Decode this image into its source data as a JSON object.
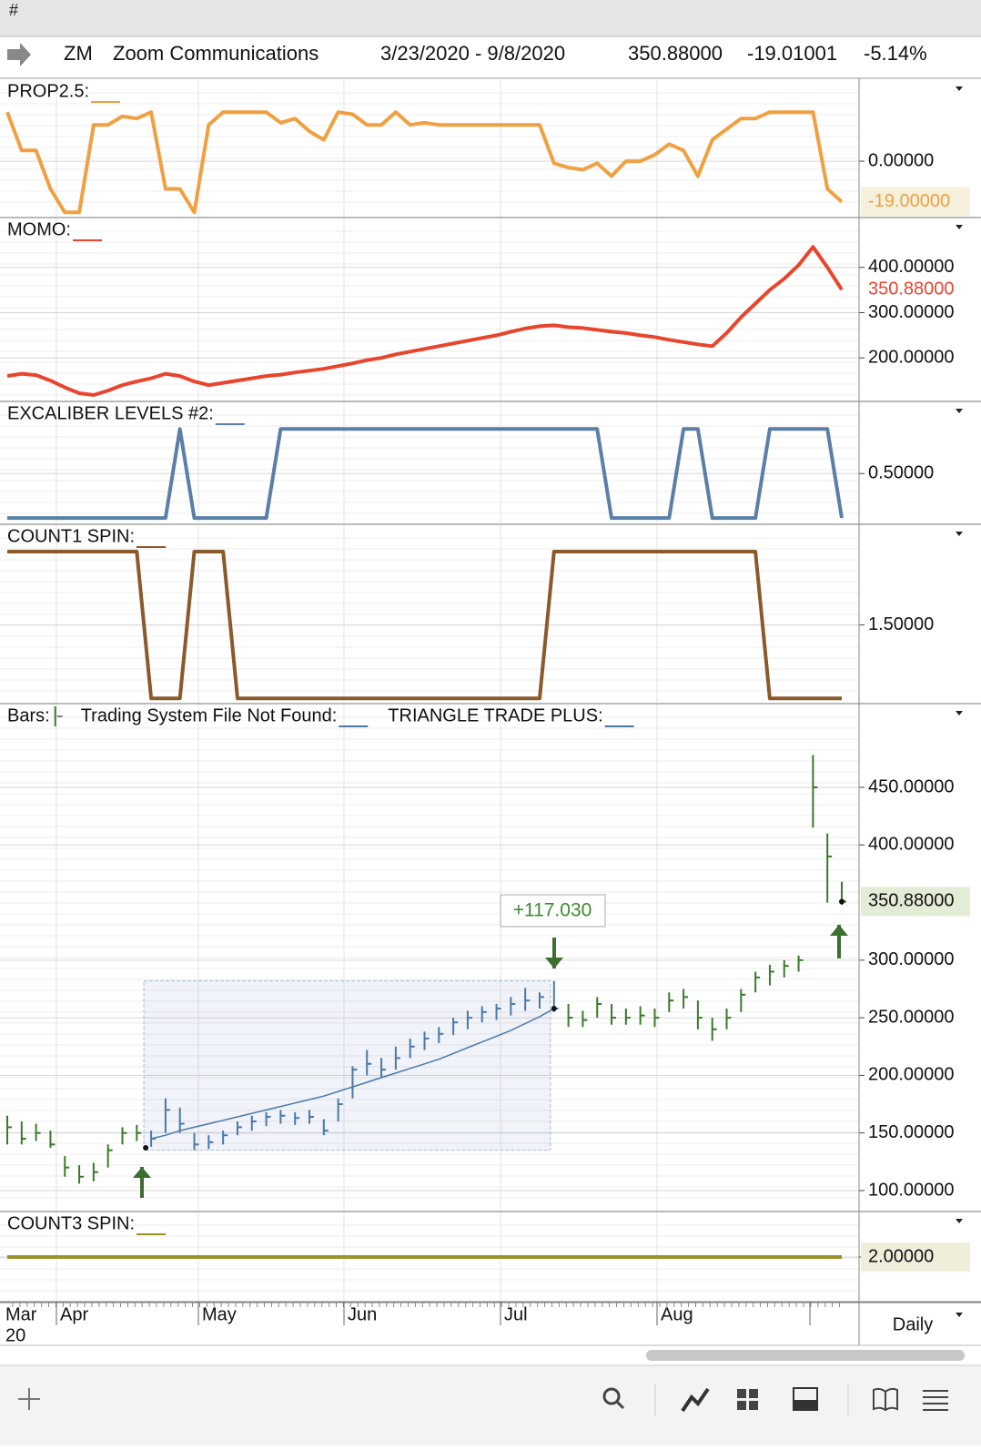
{
  "header": {
    "title": "#",
    "symbol": "ZM",
    "name": "Zoom Communications",
    "range": "3/23/2020 - 9/8/2020",
    "last": "350.88000",
    "change": "-19.01001",
    "percent": "-5.14%"
  },
  "panels": [
    {
      "type": "line",
      "label": "PROP2.5:",
      "color": "#f0a040",
      "ylim": [
        -26,
        38
      ],
      "yticks": [
        {
          "value": 0,
          "label": "0.00000"
        }
      ],
      "last": {
        "value": -19,
        "label": "-19.00000"
      },
      "values": [
        23,
        5,
        5,
        -13,
        -24,
        -24,
        17,
        17,
        21,
        20,
        23,
        -13,
        -13,
        -24,
        17,
        23,
        23,
        23,
        23,
        18,
        20,
        14,
        10,
        23,
        22,
        17,
        17,
        23,
        17,
        18,
        17,
        17,
        17,
        17,
        17,
        17,
        17,
        17,
        -1,
        -3,
        -4,
        -1,
        -7,
        0,
        0,
        3,
        8,
        5,
        -7,
        10,
        15,
        20,
        20,
        23,
        23,
        23,
        23,
        -13,
        -19
      ]
    },
    {
      "type": "line",
      "label": "MOMO:",
      "color": "#e8452c",
      "ylim": [
        106,
        508
      ],
      "yticks": [
        {
          "value": 400,
          "label": "400.00000"
        },
        {
          "value": 300,
          "label": "300.00000"
        },
        {
          "value": 200,
          "label": "200.00000"
        }
      ],
      "last": {
        "value": 350.88,
        "label": "350.88000"
      },
      "values": [
        160,
        165,
        162,
        150,
        135,
        122,
        118,
        128,
        140,
        148,
        155,
        165,
        160,
        148,
        140,
        145,
        150,
        155,
        160,
        163,
        168,
        172,
        176,
        182,
        188,
        195,
        200,
        208,
        214,
        220,
        226,
        232,
        238,
        244,
        250,
        258,
        265,
        270,
        272,
        268,
        266,
        262,
        258,
        255,
        250,
        246,
        240,
        235,
        230,
        226,
        255,
        290,
        320,
        350,
        375,
        405,
        445,
        400,
        350.88
      ]
    },
    {
      "type": "line",
      "label": "EXCALIBER LEVELS #2:",
      "color": "#5a7fa8",
      "ylim": [
        -0.06,
        1.3
      ],
      "yticks": [
        {
          "value": 0.5,
          "label": "0.50000"
        }
      ],
      "values": [
        0,
        0,
        0,
        0,
        0,
        0,
        0,
        0,
        0,
        0,
        0,
        0,
        1,
        0,
        0,
        0,
        0,
        0,
        0,
        1,
        1,
        1,
        1,
        1,
        1,
        1,
        1,
        1,
        1,
        1,
        1,
        1,
        1,
        1,
        1,
        1,
        1,
        1,
        1,
        1,
        1,
        1,
        0,
        0,
        0,
        0,
        0,
        1,
        1,
        0,
        0,
        0,
        0,
        1,
        1,
        1,
        1,
        1,
        0
      ]
    },
    {
      "type": "line",
      "label": "COUNT1 SPIN:",
      "color": "#8b5a2b",
      "ylim": [
        0.97,
        2.18
      ],
      "yticks": [
        {
          "value": 1.5,
          "label": "1.50000"
        }
      ],
      "values": [
        2,
        2,
        2,
        2,
        2,
        2,
        2,
        2,
        2,
        2,
        1,
        1,
        1,
        2,
        2,
        2,
        1,
        1,
        1,
        1,
        1,
        1,
        1,
        1,
        1,
        1,
        1,
        1,
        1,
        1,
        1,
        1,
        1,
        1,
        1,
        1,
        1,
        1,
        2,
        2,
        2,
        2,
        2,
        2,
        2,
        2,
        2,
        2,
        2,
        2,
        2,
        2,
        2,
        1,
        1,
        1,
        1,
        1,
        1
      ]
    },
    {
      "type": "ohlc",
      "labels": [
        "Bars:",
        "Trading System File Not Found:",
        "TRIANGLE TRADE PLUS:"
      ],
      "color": "#3a7a2a",
      "trade_color": "#4a78a8",
      "ylim": [
        82.6,
        521.9
      ],
      "yticks": [
        {
          "value": 450,
          "label": "450.00000"
        },
        {
          "value": 400,
          "label": "400.00000"
        },
        {
          "value": 300,
          "label": "300.00000"
        },
        {
          "value": 250,
          "label": "250.00000"
        },
        {
          "value": 200,
          "label": "200.00000"
        },
        {
          "value": 150,
          "label": "150.00000"
        },
        {
          "value": 100,
          "label": "100.00000"
        }
      ],
      "last": {
        "value": 350.88,
        "label": "350.88000"
      },
      "annotation": "+117.030",
      "high": [
        165,
        160,
        158,
        152,
        130,
        122,
        124,
        140,
        155,
        157,
        152,
        180,
        172,
        150,
        148,
        152,
        160,
        165,
        168,
        170,
        168,
        170,
        162,
        180,
        208,
        222,
        215,
        225,
        232,
        238,
        242,
        250,
        256,
        260,
        262,
        268,
        276,
        272,
        282,
        262,
        256,
        268,
        262,
        258,
        260,
        258,
        272,
        275,
        265,
        250,
        258,
        275,
        290,
        296,
        300,
        304,
        478,
        410,
        368
      ],
      "low": [
        140,
        140,
        143,
        137,
        112,
        106,
        108,
        120,
        140,
        143,
        138,
        150,
        150,
        135,
        136,
        140,
        148,
        152,
        156,
        158,
        157,
        158,
        148,
        160,
        180,
        200,
        198,
        205,
        215,
        222,
        228,
        235,
        240,
        246,
        248,
        252,
        256,
        258,
        255,
        242,
        242,
        250,
        244,
        244,
        244,
        242,
        255,
        258,
        240,
        230,
        240,
        255,
        272,
        278,
        285,
        290,
        415,
        350,
        348
      ],
      "close": [
        155,
        145,
        150,
        140,
        120,
        112,
        116,
        135,
        150,
        150,
        145,
        170,
        158,
        140,
        142,
        148,
        155,
        160,
        164,
        165,
        163,
        164,
        152,
        175,
        205,
        210,
        205,
        215,
        225,
        232,
        236,
        246,
        250,
        255,
        258,
        262,
        265,
        268,
        258,
        250,
        248,
        262,
        250,
        250,
        252,
        250,
        265,
        268,
        250,
        240,
        250,
        270,
        285,
        290,
        295,
        300,
        450,
        390,
        350.88
      ],
      "ma": [
        null,
        null,
        null,
        null,
        null,
        null,
        null,
        null,
        null,
        null,
        145,
        148,
        152,
        155,
        158,
        161,
        164,
        167,
        170,
        173,
        176,
        179,
        182,
        186,
        190,
        194,
        198,
        202,
        206,
        210,
        214,
        219,
        224,
        229,
        234,
        239,
        245,
        251,
        258,
        null,
        null,
        null,
        null,
        null,
        null,
        null,
        null,
        null,
        null,
        null,
        null,
        null,
        null,
        null,
        null,
        null,
        null,
        null,
        null
      ]
    },
    {
      "type": "line",
      "label": "COUNT3 SPIN:",
      "color": "#9a9428",
      "ylim": [
        1.5,
        2.5
      ],
      "yticks": [
        {
          "value": 2,
          "label": "2.00000"
        }
      ],
      "values": [
        2,
        2,
        2,
        2,
        2,
        2,
        2,
        2,
        2,
        2,
        2,
        2,
        2,
        2,
        2,
        2,
        2,
        2,
        2,
        2,
        2,
        2,
        2,
        2,
        2,
        2,
        2,
        2,
        2,
        2,
        2,
        2,
        2,
        2,
        2,
        2,
        2,
        2,
        2,
        2,
        2,
        2,
        2,
        2,
        2,
        2,
        2,
        2,
        2,
        2,
        2,
        2,
        2,
        2,
        2,
        2,
        2,
        2,
        2
      ]
    }
  ],
  "date_axis": {
    "months": [
      "Mar",
      "Apr",
      "May",
      "Jun",
      "Jul",
      "Aug"
    ],
    "year": "20",
    "interval": "Daily"
  }
}
